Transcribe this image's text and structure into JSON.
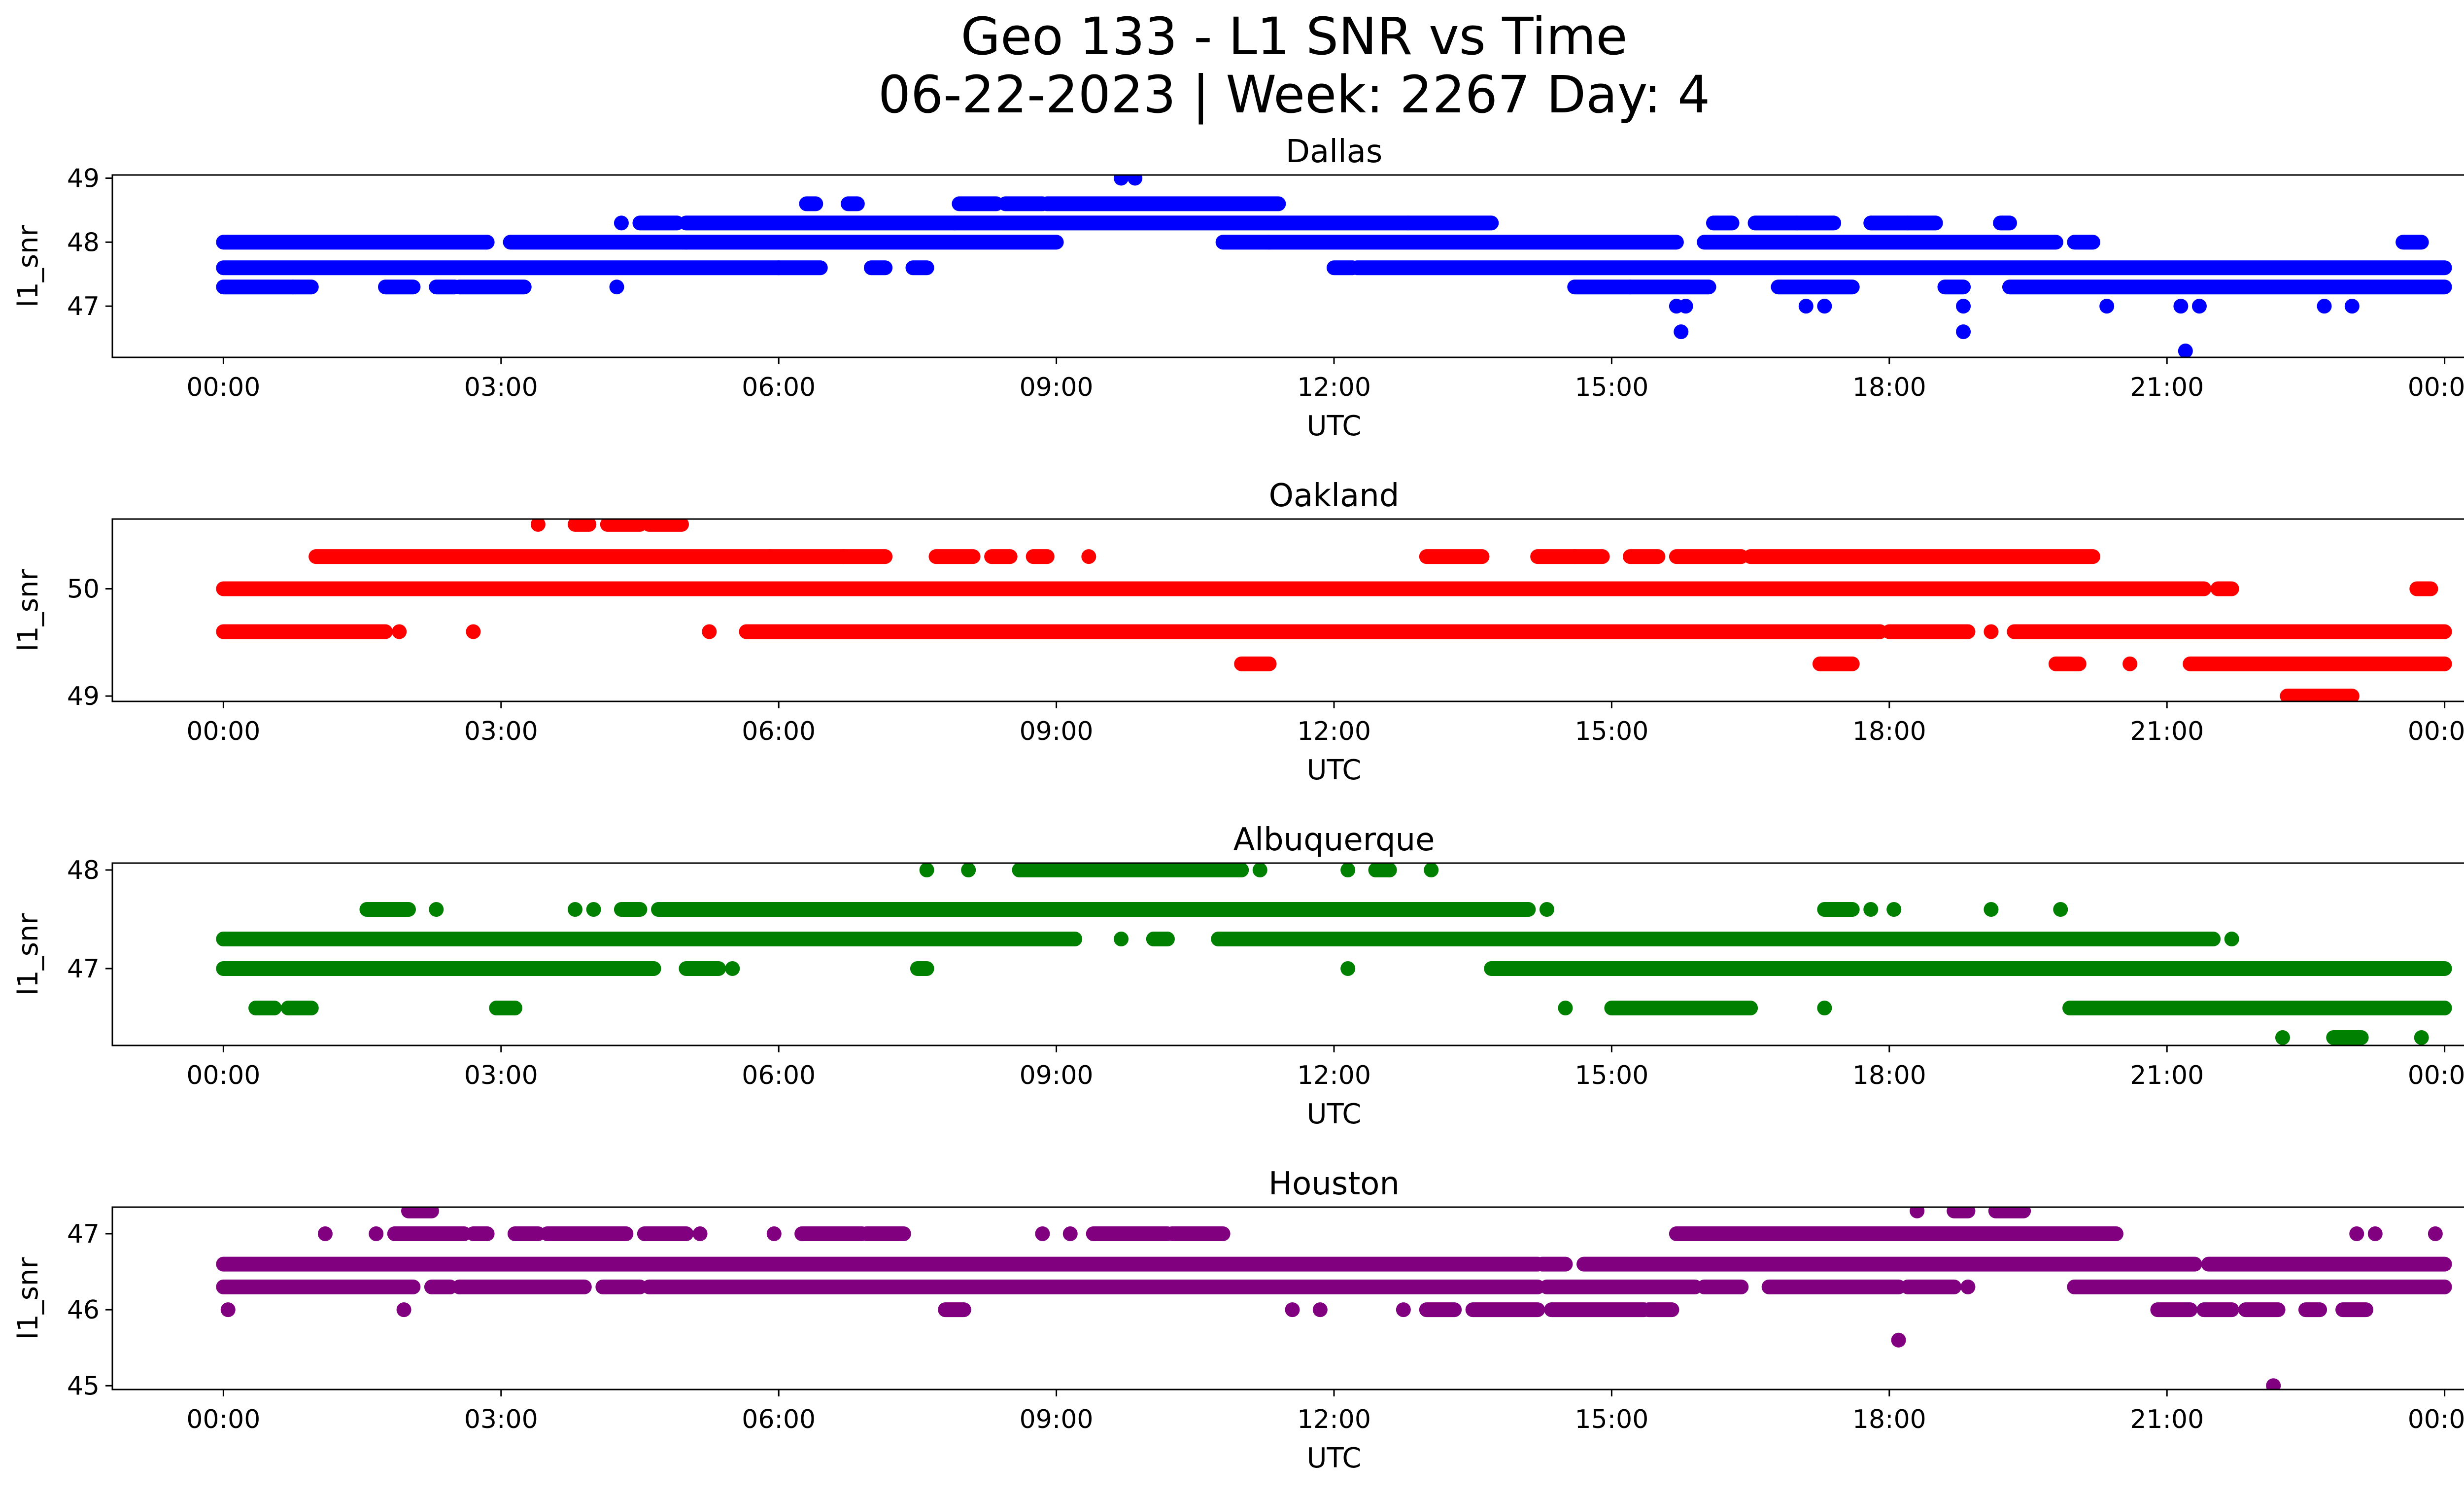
{
  "figure": {
    "title_line1": "Geo 133 - L1 SNR vs Time",
    "title_line2": "06-22-2023 | Week: 2267 Day: 4"
  },
  "chart_data": [
    {
      "type": "scatter",
      "title": "Dallas",
      "xlabel": "UTC",
      "ylabel": "l1_snr",
      "color": "#0000ff",
      "xlim": [
        "2023-06-21 22:48",
        "2023-06-23 01:12"
      ],
      "ylim": [
        46.2,
        49.05
      ],
      "xticks": [
        "00:00",
        "03:00",
        "06:00",
        "09:00",
        "12:00",
        "15:00",
        "18:00",
        "21:00",
        "00:00"
      ],
      "yticks": [
        47,
        48,
        49
      ],
      "grid": false,
      "bands": [
        {
          "y": 47.3,
          "ranges": [
            [
              0.0,
              0.75
            ],
            [
              0.75,
              0.95
            ],
            [
              1.75,
              2.05
            ],
            [
              2.3,
              2.5
            ],
            [
              2.55,
              3.25
            ],
            [
              14.6,
              15.2
            ],
            [
              15.2,
              16.05
            ],
            [
              16.8,
              17.6
            ],
            [
              18.6,
              18.8
            ],
            [
              19.3,
              24.0
            ]
          ]
        },
        {
          "y": 47.6,
          "ranges": [
            [
              0.0,
              6.0
            ],
            [
              6.0,
              6.45
            ],
            [
              7.0,
              7.15
            ],
            [
              7.45,
              7.6
            ],
            [
              12.0,
              12.2
            ],
            [
              12.25,
              24.0
            ]
          ]
        },
        {
          "y": 48.0,
          "ranges": [
            [
              0.0,
              2.85
            ],
            [
              3.1,
              5.0
            ],
            [
              5.0,
              9.0
            ],
            [
              10.8,
              11.3
            ],
            [
              11.3,
              15.7
            ],
            [
              16.0,
              19.8
            ],
            [
              20.0,
              20.2
            ],
            [
              23.55,
              23.75
            ]
          ]
        },
        {
          "y": 48.3,
          "ranges": [
            [
              4.5,
              4.9
            ],
            [
              5.0,
              7.9
            ],
            [
              7.9,
              12.8
            ],
            [
              12.8,
              13.7
            ],
            [
              16.1,
              16.3
            ],
            [
              16.55,
              17.0
            ],
            [
              17.0,
              17.4
            ],
            [
              17.8,
              18.2
            ],
            [
              18.2,
              18.5
            ],
            [
              19.2,
              19.3
            ]
          ]
        },
        {
          "y": 48.6,
          "ranges": [
            [
              6.3,
              6.4
            ],
            [
              6.75,
              6.85
            ],
            [
              7.95,
              8.35
            ],
            [
              8.45,
              8.85
            ],
            [
              8.9,
              11.4
            ]
          ]
        }
      ],
      "points": [
        {
          "x": 4.25,
          "y": 47.3
        },
        {
          "x": 4.3,
          "y": 48.3
        },
        {
          "x": 9.7,
          "y": 49.0
        },
        {
          "x": 9.85,
          "y": 49.0
        },
        {
          "x": 15.7,
          "y": 47.0
        },
        {
          "x": 15.8,
          "y": 47.0
        },
        {
          "x": 15.75,
          "y": 46.6
        },
        {
          "x": 17.1,
          "y": 47.0
        },
        {
          "x": 17.3,
          "y": 47.0
        },
        {
          "x": 18.8,
          "y": 47.0
        },
        {
          "x": 18.8,
          "y": 46.6
        },
        {
          "x": 20.35,
          "y": 47.0
        },
        {
          "x": 21.15,
          "y": 47.0
        },
        {
          "x": 21.35,
          "y": 47.0
        },
        {
          "x": 21.2,
          "y": 46.3
        },
        {
          "x": 22.7,
          "y": 47.0
        },
        {
          "x": 23.0,
          "y": 47.0
        }
      ]
    },
    {
      "type": "scatter",
      "title": "Oakland",
      "xlabel": "UTC",
      "ylabel": "l1_snr",
      "color": "#ff0000",
      "xlim": [
        "2023-06-21 22:48",
        "2023-06-23 01:12"
      ],
      "ylim": [
        48.95,
        50.65
      ],
      "xticks": [
        "00:00",
        "03:00",
        "06:00",
        "09:00",
        "12:00",
        "15:00",
        "18:00",
        "21:00",
        "00:00"
      ],
      "yticks": [
        49,
        50
      ],
      "grid": false,
      "bands": [
        {
          "y": 49.0,
          "ranges": [
            [
              22.3,
              23.0
            ]
          ]
        },
        {
          "y": 49.3,
          "ranges": [
            [
              11.0,
              11.3
            ],
            [
              17.25,
              17.6
            ],
            [
              19.8,
              20.05
            ],
            [
              21.25,
              24.0
            ]
          ]
        },
        {
          "y": 49.6,
          "ranges": [
            [
              0.0,
              1.75
            ],
            [
              5.65,
              17.9
            ],
            [
              18.0,
              18.85
            ],
            [
              19.35,
              24.0
            ]
          ]
        },
        {
          "y": 50.0,
          "ranges": [
            [
              0.0,
              21.4
            ],
            [
              21.55,
              21.7
            ],
            [
              23.7,
              23.85
            ]
          ]
        },
        {
          "y": 50.3,
          "ranges": [
            [
              1.0,
              5.9
            ],
            [
              5.9,
              6.7
            ],
            [
              6.7,
              7.15
            ],
            [
              7.7,
              8.1
            ],
            [
              8.3,
              8.5
            ],
            [
              8.75,
              8.9
            ],
            [
              13.0,
              13.6
            ],
            [
              14.2,
              14.9
            ],
            [
              15.2,
              15.5
            ],
            [
              15.7,
              16.4
            ],
            [
              16.5,
              20.2
            ]
          ]
        },
        {
          "y": 50.6,
          "ranges": [
            [
              3.8,
              3.95
            ],
            [
              4.15,
              4.5
            ],
            [
              4.6,
              4.95
            ]
          ]
        }
      ],
      "points": [
        {
          "x": 1.9,
          "y": 49.6
        },
        {
          "x": 2.7,
          "y": 49.6
        },
        {
          "x": 5.25,
          "y": 49.6
        },
        {
          "x": 19.1,
          "y": 49.6
        },
        {
          "x": 20.6,
          "y": 49.3
        },
        {
          "x": 9.35,
          "y": 50.3
        },
        {
          "x": 14.6,
          "y": 50.3
        },
        {
          "x": 3.4,
          "y": 50.6
        }
      ]
    },
    {
      "type": "scatter",
      "title": "Albuquerque",
      "xlabel": "UTC",
      "ylabel": "l1_snr",
      "color": "#008000",
      "xlim": [
        "2023-06-21 22:48",
        "2023-06-23 01:12"
      ],
      "ylim": [
        46.22,
        48.07
      ],
      "xticks": [
        "00:00",
        "03:00",
        "06:00",
        "09:00",
        "12:00",
        "15:00",
        "18:00",
        "21:00",
        "00:00"
      ],
      "yticks": [
        47,
        48
      ],
      "grid": false,
      "bands": [
        {
          "y": 46.3,
          "ranges": [
            [
              22.8,
              23.1
            ]
          ]
        },
        {
          "y": 46.6,
          "ranges": [
            [
              0.35,
              0.55
            ],
            [
              0.7,
              0.95
            ],
            [
              2.95,
              3.15
            ],
            [
              15.0,
              16.5
            ],
            [
              19.95,
              24.0
            ]
          ]
        },
        {
          "y": 47.0,
          "ranges": [
            [
              0.0,
              4.65
            ],
            [
              5.0,
              5.35
            ],
            [
              7.5,
              7.6
            ],
            [
              13.7,
              24.0
            ]
          ]
        },
        {
          "y": 47.3,
          "ranges": [
            [
              0.0,
              8.6
            ],
            [
              8.6,
              9.2
            ],
            [
              10.05,
              10.2
            ],
            [
              10.75,
              21.5
            ]
          ]
        },
        {
          "y": 47.6,
          "ranges": [
            [
              1.55,
              2.0
            ],
            [
              4.3,
              4.5
            ],
            [
              4.7,
              14.1
            ],
            [
              17.3,
              17.6
            ]
          ]
        },
        {
          "y": 48.0,
          "ranges": [
            [
              8.6,
              11.0
            ],
            [
              12.45,
              12.6
            ]
          ]
        }
      ],
      "points": [
        {
          "x": 2.3,
          "y": 47.6
        },
        {
          "x": 3.8,
          "y": 47.6
        },
        {
          "x": 4.0,
          "y": 47.6
        },
        {
          "x": 5.5,
          "y": 47.0
        },
        {
          "x": 9.7,
          "y": 47.3
        },
        {
          "x": 12.15,
          "y": 47.0
        },
        {
          "x": 14.3,
          "y": 47.6
        },
        {
          "x": 14.5,
          "y": 46.6
        },
        {
          "x": 17.3,
          "y": 46.6
        },
        {
          "x": 17.8,
          "y": 47.6
        },
        {
          "x": 18.05,
          "y": 47.6
        },
        {
          "x": 19.1,
          "y": 47.6
        },
        {
          "x": 19.85,
          "y": 47.6
        },
        {
          "x": 21.7,
          "y": 47.3
        },
        {
          "x": 22.25,
          "y": 46.3
        },
        {
          "x": 23.75,
          "y": 46.3
        },
        {
          "x": 7.6,
          "y": 48.0
        },
        {
          "x": 8.05,
          "y": 48.0
        },
        {
          "x": 11.2,
          "y": 48.0
        },
        {
          "x": 12.15,
          "y": 48.0
        },
        {
          "x": 13.05,
          "y": 48.0
        }
      ]
    },
    {
      "type": "scatter",
      "title": "Houston",
      "xlabel": "UTC",
      "ylabel": "l1_snr",
      "color": "#800080",
      "xlim": [
        "2023-06-21 22:48",
        "2023-06-23 01:12"
      ],
      "ylim": [
        44.95,
        47.35
      ],
      "xticks": [
        "00:00",
        "03:00",
        "06:00",
        "09:00",
        "12:00",
        "15:00",
        "18:00",
        "21:00",
        "00:00"
      ],
      "yticks": [
        45,
        46,
        47
      ],
      "grid": false,
      "bands": [
        {
          "y": 46.0,
          "ranges": [
            [
              7.8,
              8.0
            ],
            [
              13.0,
              13.3
            ],
            [
              13.5,
              14.2
            ],
            [
              14.35,
              15.35
            ],
            [
              15.4,
              15.65
            ],
            [
              20.9,
              21.25
            ],
            [
              21.4,
              21.7
            ],
            [
              21.85,
              22.2
            ],
            [
              22.5,
              22.65
            ],
            [
              22.9,
              23.15
            ]
          ]
        },
        {
          "y": 46.3,
          "ranges": [
            [
              0.0,
              2.05
            ],
            [
              2.25,
              2.45
            ],
            [
              2.55,
              3.9
            ],
            [
              4.1,
              4.5
            ],
            [
              4.6,
              14.2
            ],
            [
              14.3,
              15.9
            ],
            [
              16.0,
              16.4
            ],
            [
              16.7,
              18.1
            ],
            [
              18.2,
              18.7
            ],
            [
              20.0,
              24.0
            ]
          ]
        },
        {
          "y": 46.6,
          "ranges": [
            [
              0.0,
              14.2
            ],
            [
              14.25,
              14.5
            ],
            [
              14.7,
              21.3
            ],
            [
              21.45,
              24.0
            ]
          ]
        },
        {
          "y": 47.0,
          "ranges": [
            [
              1.85,
              2.6
            ],
            [
              2.7,
              2.85
            ],
            [
              3.15,
              3.4
            ],
            [
              3.5,
              4.35
            ],
            [
              4.55,
              5.0
            ],
            [
              6.25,
              6.9
            ],
            [
              6.95,
              7.35
            ],
            [
              9.4,
              10.2
            ],
            [
              10.25,
              10.8
            ],
            [
              15.7,
              20.45
            ]
          ]
        },
        {
          "y": 47.3,
          "ranges": [
            [
              2.0,
              2.25
            ],
            [
              18.7,
              18.85
            ],
            [
              19.15,
              19.45
            ]
          ]
        }
      ],
      "points": [
        {
          "x": 0.05,
          "y": 46.0
        },
        {
          "x": 1.95,
          "y": 46.0
        },
        {
          "x": 11.55,
          "y": 46.0
        },
        {
          "x": 11.85,
          "y": 46.0
        },
        {
          "x": 12.75,
          "y": 46.0
        },
        {
          "x": 18.1,
          "y": 45.6
        },
        {
          "x": 22.15,
          "y": 45.0
        },
        {
          "x": 1.1,
          "y": 47.0
        },
        {
          "x": 1.65,
          "y": 47.0
        },
        {
          "x": 2.55,
          "y": 46.3
        },
        {
          "x": 5.15,
          "y": 47.0
        },
        {
          "x": 5.95,
          "y": 47.0
        },
        {
          "x": 8.85,
          "y": 47.0
        },
        {
          "x": 9.15,
          "y": 47.0
        },
        {
          "x": 18.3,
          "y": 47.3
        },
        {
          "x": 18.85,
          "y": 46.3
        },
        {
          "x": 23.05,
          "y": 47.0
        },
        {
          "x": 23.25,
          "y": 47.0
        },
        {
          "x": 23.9,
          "y": 47.0
        }
      ]
    }
  ]
}
